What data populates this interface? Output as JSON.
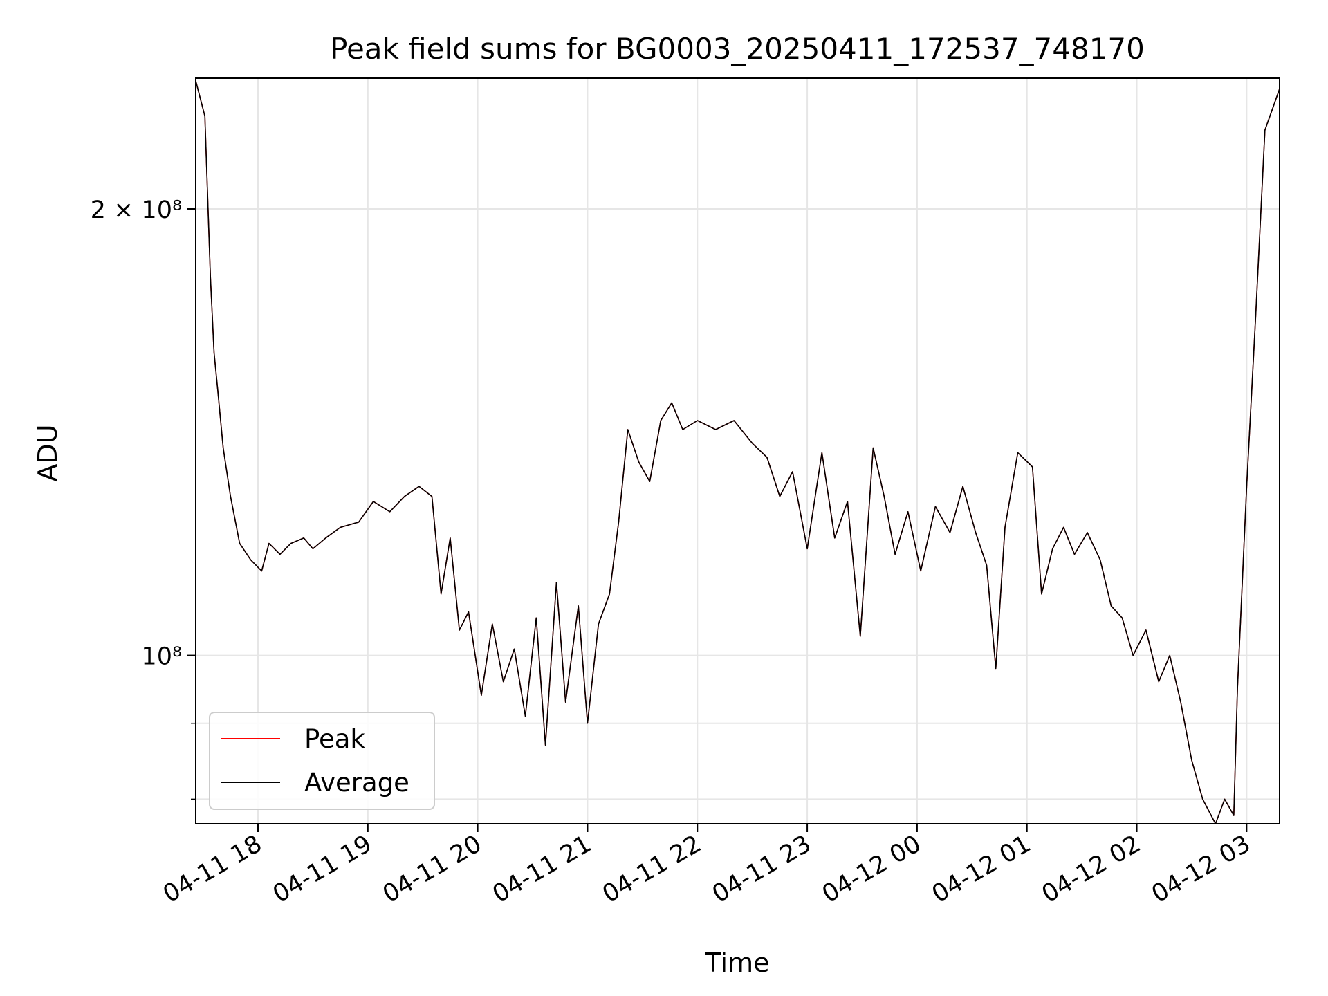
{
  "chart_data": {
    "type": "line",
    "title": "Peak field sums for BG0003_20250411_172537_748170",
    "xlabel": "Time",
    "ylabel": "ADU",
    "y_scale": "log",
    "grid": true,
    "legend_position": "lower-left",
    "x_tick_labels": [
      "04-11 18",
      "04-11 19",
      "04-11 20",
      "04-11 21",
      "04-11 22",
      "04-11 23",
      "04-12 00",
      "04-12 01",
      "04-12 02",
      "04-12 03"
    ],
    "x_ticks": [
      "2025-04-11 18:00",
      "2025-04-11 19:00",
      "2025-04-11 20:00",
      "2025-04-11 21:00",
      "2025-04-11 22:00",
      "2025-04-11 23:00",
      "2025-04-12 00:00",
      "2025-04-12 01:00",
      "2025-04-12 02:00",
      "2025-04-12 03:00"
    ],
    "xlim": [
      "2025-04-11 17:26",
      "2025-04-12 03:18"
    ],
    "y_tick_labels": [
      {
        "value": 200000000,
        "label": "2 × 10⁸"
      },
      {
        "value": 100000000,
        "label": "10⁸"
      }
    ],
    "y_minor_ticks": [
      90000000,
      80000000
    ],
    "ylim": [
      77000000,
      245000000
    ],
    "legend": [
      {
        "name": "Peak",
        "color": "#ff0000"
      },
      {
        "name": "Average",
        "color": "#000000"
      }
    ],
    "series": [
      {
        "name": "Peak",
        "color": "#ff0000",
        "points": [
          [
            "2025-04-11 17:26",
            244000000
          ],
          [
            "2025-04-11 17:31",
            231000000
          ],
          [
            "2025-04-11 17:34",
            180000000
          ],
          [
            "2025-04-11 17:36",
            160000000
          ],
          [
            "2025-04-11 17:38",
            151000000
          ],
          [
            "2025-04-11 17:41",
            138000000
          ],
          [
            "2025-04-11 17:45",
            128000000
          ],
          [
            "2025-04-11 17:50",
            119000000
          ],
          [
            "2025-04-11 17:56",
            116000000
          ],
          [
            "2025-04-11 18:02",
            114000000
          ],
          [
            "2025-04-11 18:06",
            119000000
          ],
          [
            "2025-04-11 18:12",
            117000000
          ],
          [
            "2025-04-11 18:18",
            119000000
          ],
          [
            "2025-04-11 18:25",
            120000000
          ],
          [
            "2025-04-11 18:30",
            118000000
          ],
          [
            "2025-04-11 18:37",
            120000000
          ],
          [
            "2025-04-11 18:45",
            122000000
          ],
          [
            "2025-04-11 18:55",
            123000000
          ],
          [
            "2025-04-11 19:03",
            127000000
          ],
          [
            "2025-04-11 19:12",
            125000000
          ],
          [
            "2025-04-11 19:20",
            128000000
          ],
          [
            "2025-04-11 19:28",
            130000000
          ],
          [
            "2025-04-11 19:35",
            128000000
          ],
          [
            "2025-04-11 19:40",
            110000000
          ],
          [
            "2025-04-11 19:45",
            120000000
          ],
          [
            "2025-04-11 19:50",
            104000000
          ],
          [
            "2025-04-11 19:55",
            107000000
          ],
          [
            "2025-04-11 20:02",
            94000000
          ],
          [
            "2025-04-11 20:08",
            105000000
          ],
          [
            "2025-04-11 20:14",
            96000000
          ],
          [
            "2025-04-11 20:20",
            101000000
          ],
          [
            "2025-04-11 20:26",
            91000000
          ],
          [
            "2025-04-11 20:32",
            106000000
          ],
          [
            "2025-04-11 20:37",
            87000000
          ],
          [
            "2025-04-11 20:43",
            112000000
          ],
          [
            "2025-04-11 20:48",
            93000000
          ],
          [
            "2025-04-11 20:55",
            108000000
          ],
          [
            "2025-04-11 21:00",
            90000000
          ],
          [
            "2025-04-11 21:06",
            105000000
          ],
          [
            "2025-04-11 21:12",
            110000000
          ],
          [
            "2025-04-11 21:17",
            123000000
          ],
          [
            "2025-04-11 21:22",
            142000000
          ],
          [
            "2025-04-11 21:28",
            135000000
          ],
          [
            "2025-04-11 21:34",
            131000000
          ],
          [
            "2025-04-11 21:40",
            144000000
          ],
          [
            "2025-04-11 21:46",
            148000000
          ],
          [
            "2025-04-11 21:52",
            142000000
          ],
          [
            "2025-04-11 22:00",
            144000000
          ],
          [
            "2025-04-11 22:10",
            142000000
          ],
          [
            "2025-04-11 22:20",
            144000000
          ],
          [
            "2025-04-11 22:30",
            139000000
          ],
          [
            "2025-04-11 22:38",
            136000000
          ],
          [
            "2025-04-11 22:45",
            128000000
          ],
          [
            "2025-04-11 22:52",
            133000000
          ],
          [
            "2025-04-11 23:00",
            118000000
          ],
          [
            "2025-04-11 23:08",
            137000000
          ],
          [
            "2025-04-11 23:15",
            120000000
          ],
          [
            "2025-04-11 23:22",
            127000000
          ],
          [
            "2025-04-11 23:29",
            103000000
          ],
          [
            "2025-04-11 23:36",
            138000000
          ],
          [
            "2025-04-11 23:42",
            128000000
          ],
          [
            "2025-04-11 23:48",
            117000000
          ],
          [
            "2025-04-11 23:55",
            125000000
          ],
          [
            "2025-04-12 00:02",
            114000000
          ],
          [
            "2025-04-12 00:10",
            126000000
          ],
          [
            "2025-04-12 00:18",
            121000000
          ],
          [
            "2025-04-12 00:25",
            130000000
          ],
          [
            "2025-04-12 00:32",
            121000000
          ],
          [
            "2025-04-12 00:38",
            115000000
          ],
          [
            "2025-04-12 00:43",
            98000000
          ],
          [
            "2025-04-12 00:48",
            122000000
          ],
          [
            "2025-04-12 00:55",
            137000000
          ],
          [
            "2025-04-12 01:03",
            134000000
          ],
          [
            "2025-04-12 01:08",
            110000000
          ],
          [
            "2025-04-12 01:14",
            118000000
          ],
          [
            "2025-04-12 01:20",
            122000000
          ],
          [
            "2025-04-12 01:26",
            117000000
          ],
          [
            "2025-04-12 01:33",
            121000000
          ],
          [
            "2025-04-12 01:40",
            116000000
          ],
          [
            "2025-04-12 01:46",
            108000000
          ],
          [
            "2025-04-12 01:52",
            106000000
          ],
          [
            "2025-04-12 01:58",
            100000000
          ],
          [
            "2025-04-12 02:05",
            104000000
          ],
          [
            "2025-04-12 02:12",
            96000000
          ],
          [
            "2025-04-12 02:18",
            100000000
          ],
          [
            "2025-04-12 02:24",
            93000000
          ],
          [
            "2025-04-12 02:30",
            85000000
          ],
          [
            "2025-04-12 02:36",
            80000000
          ],
          [
            "2025-04-12 02:43",
            77000000
          ],
          [
            "2025-04-12 02:48",
            80000000
          ],
          [
            "2025-04-12 02:53",
            78000000
          ],
          [
            "2025-04-12 02:55",
            95000000
          ],
          [
            "2025-04-12 03:00",
            130000000
          ],
          [
            "2025-04-12 03:05",
            170000000
          ],
          [
            "2025-04-12 03:10",
            226000000
          ],
          [
            "2025-04-12 03:18",
            241000000
          ]
        ]
      },
      {
        "name": "Average",
        "color": "#000000",
        "points": [
          [
            "2025-04-11 17:26",
            244000000
          ],
          [
            "2025-04-11 17:31",
            231000000
          ],
          [
            "2025-04-11 17:34",
            180000000
          ],
          [
            "2025-04-11 17:36",
            160000000
          ],
          [
            "2025-04-11 17:38",
            151000000
          ],
          [
            "2025-04-11 17:41",
            138000000
          ],
          [
            "2025-04-11 17:45",
            128000000
          ],
          [
            "2025-04-11 17:50",
            119000000
          ],
          [
            "2025-04-11 17:56",
            116000000
          ],
          [
            "2025-04-11 18:02",
            114000000
          ],
          [
            "2025-04-11 18:06",
            119000000
          ],
          [
            "2025-04-11 18:12",
            117000000
          ],
          [
            "2025-04-11 18:18",
            119000000
          ],
          [
            "2025-04-11 18:25",
            120000000
          ],
          [
            "2025-04-11 18:30",
            118000000
          ],
          [
            "2025-04-11 18:37",
            120000000
          ],
          [
            "2025-04-11 18:45",
            122000000
          ],
          [
            "2025-04-11 18:55",
            123000000
          ],
          [
            "2025-04-11 19:03",
            127000000
          ],
          [
            "2025-04-11 19:12",
            125000000
          ],
          [
            "2025-04-11 19:20",
            128000000
          ],
          [
            "2025-04-11 19:28",
            130000000
          ],
          [
            "2025-04-11 19:35",
            128000000
          ],
          [
            "2025-04-11 19:40",
            110000000
          ],
          [
            "2025-04-11 19:45",
            120000000
          ],
          [
            "2025-04-11 19:50",
            104000000
          ],
          [
            "2025-04-11 19:55",
            107000000
          ],
          [
            "2025-04-11 20:02",
            94000000
          ],
          [
            "2025-04-11 20:08",
            105000000
          ],
          [
            "2025-04-11 20:14",
            96000000
          ],
          [
            "2025-04-11 20:20",
            101000000
          ],
          [
            "2025-04-11 20:26",
            91000000
          ],
          [
            "2025-04-11 20:32",
            106000000
          ],
          [
            "2025-04-11 20:37",
            87000000
          ],
          [
            "2025-04-11 20:43",
            112000000
          ],
          [
            "2025-04-11 20:48",
            93000000
          ],
          [
            "2025-04-11 20:55",
            108000000
          ],
          [
            "2025-04-11 21:00",
            90000000
          ],
          [
            "2025-04-11 21:06",
            105000000
          ],
          [
            "2025-04-11 21:12",
            110000000
          ],
          [
            "2025-04-11 21:17",
            123000000
          ],
          [
            "2025-04-11 21:22",
            142000000
          ],
          [
            "2025-04-11 21:28",
            135000000
          ],
          [
            "2025-04-11 21:34",
            131000000
          ],
          [
            "2025-04-11 21:40",
            144000000
          ],
          [
            "2025-04-11 21:46",
            148000000
          ],
          [
            "2025-04-11 21:52",
            142000000
          ],
          [
            "2025-04-11 22:00",
            144000000
          ],
          [
            "2025-04-11 22:10",
            142000000
          ],
          [
            "2025-04-11 22:20",
            144000000
          ],
          [
            "2025-04-11 22:30",
            139000000
          ],
          [
            "2025-04-11 22:38",
            136000000
          ],
          [
            "2025-04-11 22:45",
            128000000
          ],
          [
            "2025-04-11 22:52",
            133000000
          ],
          [
            "2025-04-11 23:00",
            118000000
          ],
          [
            "2025-04-11 23:08",
            137000000
          ],
          [
            "2025-04-11 23:15",
            120000000
          ],
          [
            "2025-04-11 23:22",
            127000000
          ],
          [
            "2025-04-11 23:29",
            103000000
          ],
          [
            "2025-04-11 23:36",
            138000000
          ],
          [
            "2025-04-11 23:42",
            128000000
          ],
          [
            "2025-04-11 23:48",
            117000000
          ],
          [
            "2025-04-11 23:55",
            125000000
          ],
          [
            "2025-04-12 00:02",
            114000000
          ],
          [
            "2025-04-12 00:10",
            126000000
          ],
          [
            "2025-04-12 00:18",
            121000000
          ],
          [
            "2025-04-12 00:25",
            130000000
          ],
          [
            "2025-04-12 00:32",
            121000000
          ],
          [
            "2025-04-12 00:38",
            115000000
          ],
          [
            "2025-04-12 00:43",
            98000000
          ],
          [
            "2025-04-12 00:48",
            122000000
          ],
          [
            "2025-04-12 00:55",
            137000000
          ],
          [
            "2025-04-12 01:03",
            134000000
          ],
          [
            "2025-04-12 01:08",
            110000000
          ],
          [
            "2025-04-12 01:14",
            118000000
          ],
          [
            "2025-04-12 01:20",
            122000000
          ],
          [
            "2025-04-12 01:26",
            117000000
          ],
          [
            "2025-04-12 01:33",
            121000000
          ],
          [
            "2025-04-12 01:40",
            116000000
          ],
          [
            "2025-04-12 01:46",
            108000000
          ],
          [
            "2025-04-12 01:52",
            106000000
          ],
          [
            "2025-04-12 01:58",
            100000000
          ],
          [
            "2025-04-12 02:05",
            104000000
          ],
          [
            "2025-04-12 02:12",
            96000000
          ],
          [
            "2025-04-12 02:18",
            100000000
          ],
          [
            "2025-04-12 02:24",
            93000000
          ],
          [
            "2025-04-12 02:30",
            85000000
          ],
          [
            "2025-04-12 02:36",
            80000000
          ],
          [
            "2025-04-12 02:43",
            77000000
          ],
          [
            "2025-04-12 02:48",
            80000000
          ],
          [
            "2025-04-12 02:53",
            78000000
          ],
          [
            "2025-04-12 02:55",
            95000000
          ],
          [
            "2025-04-12 03:00",
            130000000
          ],
          [
            "2025-04-12 03:05",
            170000000
          ],
          [
            "2025-04-12 03:10",
            226000000
          ],
          [
            "2025-04-12 03:18",
            241000000
          ]
        ]
      }
    ]
  }
}
